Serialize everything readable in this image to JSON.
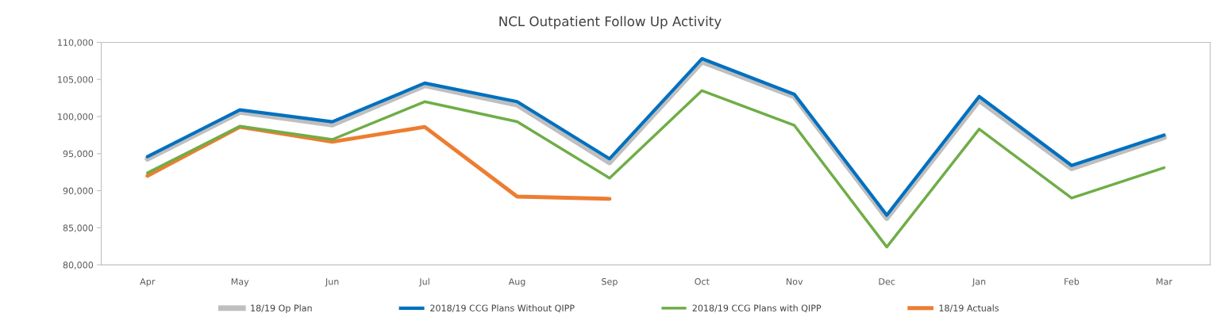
{
  "chart_data": {
    "type": "line",
    "title": "NCL Outpatient Follow Up Activity",
    "categories": [
      "Apr",
      "May",
      "Jun",
      "Jul",
      "Aug",
      "Sep",
      "Oct",
      "Nov",
      "Dec",
      "Jan",
      "Feb",
      "Mar"
    ],
    "series": [
      {
        "name": "18/19 Op Plan",
        "color": "#bfbfbf",
        "values": [
          94300,
          100600,
          98900,
          104200,
          101600,
          93800,
          107400,
          102700,
          86300,
          102200,
          93000,
          97200
        ]
      },
      {
        "name": "2018/19 CCG Plans Without QIPP",
        "color": "#0070c0",
        "values": [
          94600,
          100900,
          99300,
          104500,
          102000,
          94300,
          107800,
          103000,
          86700,
          102700,
          93400,
          97500
        ]
      },
      {
        "name": "2018/19 CCG Plans with QIPP",
        "color": "#70ad47",
        "values": [
          92400,
          98700,
          96900,
          102000,
          99300,
          91700,
          103500,
          98800,
          82400,
          98300,
          89000,
          93100
        ]
      },
      {
        "name": "18/19 Actuals",
        "color": "#ed7d31",
        "values": [
          92000,
          98600,
          96600,
          98600,
          89200,
          88900,
          null,
          null,
          null,
          null,
          null,
          null
        ]
      }
    ],
    "ylim": [
      80000,
      110000
    ],
    "yticks": [
      {
        "value": 80000,
        "label": "80,000"
      },
      {
        "value": 85000,
        "label": "85,000"
      },
      {
        "value": 90000,
        "label": "90,000"
      },
      {
        "value": 95000,
        "label": "95,000"
      },
      {
        "value": 100000,
        "label": "100,000"
      },
      {
        "value": 105000,
        "label": "105,000"
      },
      {
        "value": 110000,
        "label": "110,000"
      }
    ],
    "grid": false,
    "legend": "bottom",
    "marker": "none",
    "line_style": "solid"
  }
}
